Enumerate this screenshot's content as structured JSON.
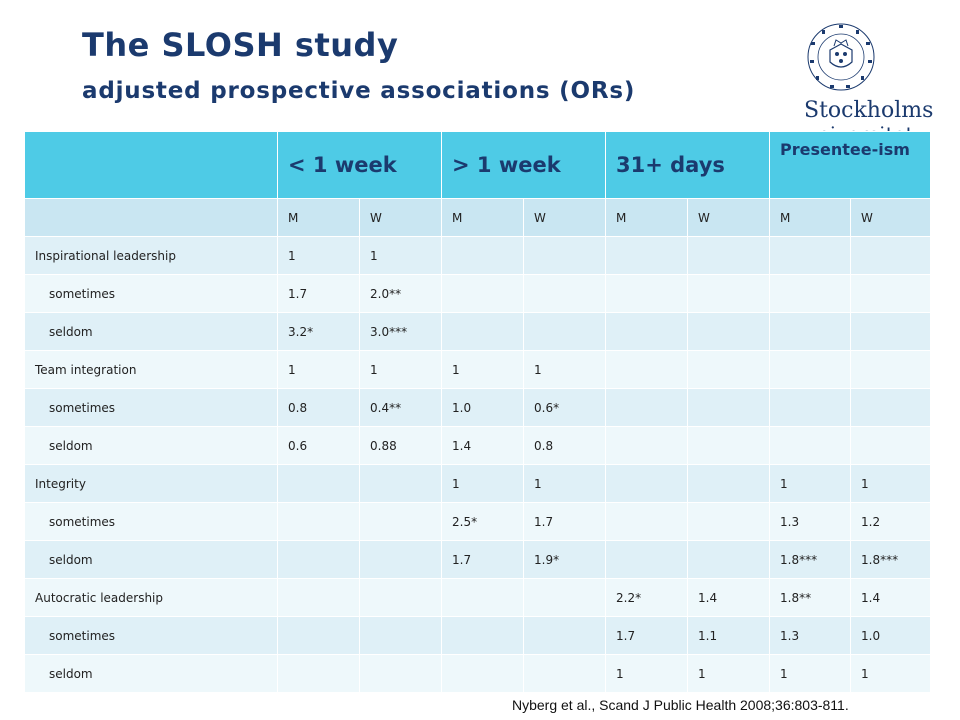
{
  "header": {
    "title": "The SLOSH study",
    "subtitle": "adjusted prospective associations (ORs)"
  },
  "logo": {
    "line1": "Stockholms",
    "line2": "universitet",
    "seal_text": "STOCKHOLMS UNIVERSITET"
  },
  "table": {
    "columns": [
      "",
      "< 1 week",
      "> 1 week",
      "31+ days",
      "Presentee-ism"
    ],
    "subheaders": [
      "",
      "M",
      "W",
      "M",
      "W",
      "M",
      "W",
      "M",
      "W"
    ],
    "rows": [
      {
        "label": "Inspirational leadership",
        "indent": false,
        "cells": [
          "1",
          "1",
          "",
          "",
          "",
          "",
          "",
          ""
        ]
      },
      {
        "label": "sometimes",
        "indent": true,
        "cells": [
          "1.7",
          "2.0**",
          "",
          "",
          "",
          "",
          "",
          ""
        ]
      },
      {
        "label": "seldom",
        "indent": true,
        "cells": [
          "3.2*",
          "3.0***",
          "",
          "",
          "",
          "",
          "",
          ""
        ]
      },
      {
        "label": "Team integration",
        "indent": false,
        "cells": [
          "1",
          "1",
          "1",
          "1",
          "",
          "",
          "",
          ""
        ]
      },
      {
        "label": "sometimes",
        "indent": true,
        "cells": [
          "0.8",
          "0.4**",
          "1.0",
          "0.6*",
          "",
          "",
          "",
          ""
        ]
      },
      {
        "label": "seldom",
        "indent": true,
        "cells": [
          "0.6",
          "0.88",
          "1.4",
          "0.8",
          "",
          "",
          "",
          ""
        ]
      },
      {
        "label": "Integrity",
        "indent": false,
        "cells": [
          "",
          "",
          "1",
          "1",
          "",
          "",
          "1",
          "1"
        ]
      },
      {
        "label": "sometimes",
        "indent": true,
        "cells": [
          "",
          "",
          "2.5*",
          "1.7",
          "",
          "",
          "1.3",
          "1.2"
        ]
      },
      {
        "label": "seldom",
        "indent": true,
        "cells": [
          "",
          "",
          "1.7",
          "1.9*",
          "",
          "",
          "1.8***",
          "1.8***"
        ]
      },
      {
        "label": "Autocratic leadership",
        "indent": false,
        "cells": [
          "",
          "",
          "",
          "",
          "2.2*",
          "1.4",
          "1.8**",
          "1.4"
        ]
      },
      {
        "label": "sometimes",
        "indent": true,
        "cells": [
          "",
          "",
          "",
          "",
          "1.7",
          "1.1",
          "1.3",
          "1.0"
        ]
      },
      {
        "label": "seldom",
        "indent": true,
        "cells": [
          "",
          "",
          "",
          "",
          "1",
          "1",
          "1",
          "1"
        ]
      }
    ]
  },
  "citation": "Nyberg et al., Scand J Public Health 2008;36:803-811.",
  "colors": {
    "title": "#1b3a6e",
    "header_fill": "#4ecbe6",
    "row_even": "#dff0f7",
    "row_odd": "#eef8fb"
  }
}
